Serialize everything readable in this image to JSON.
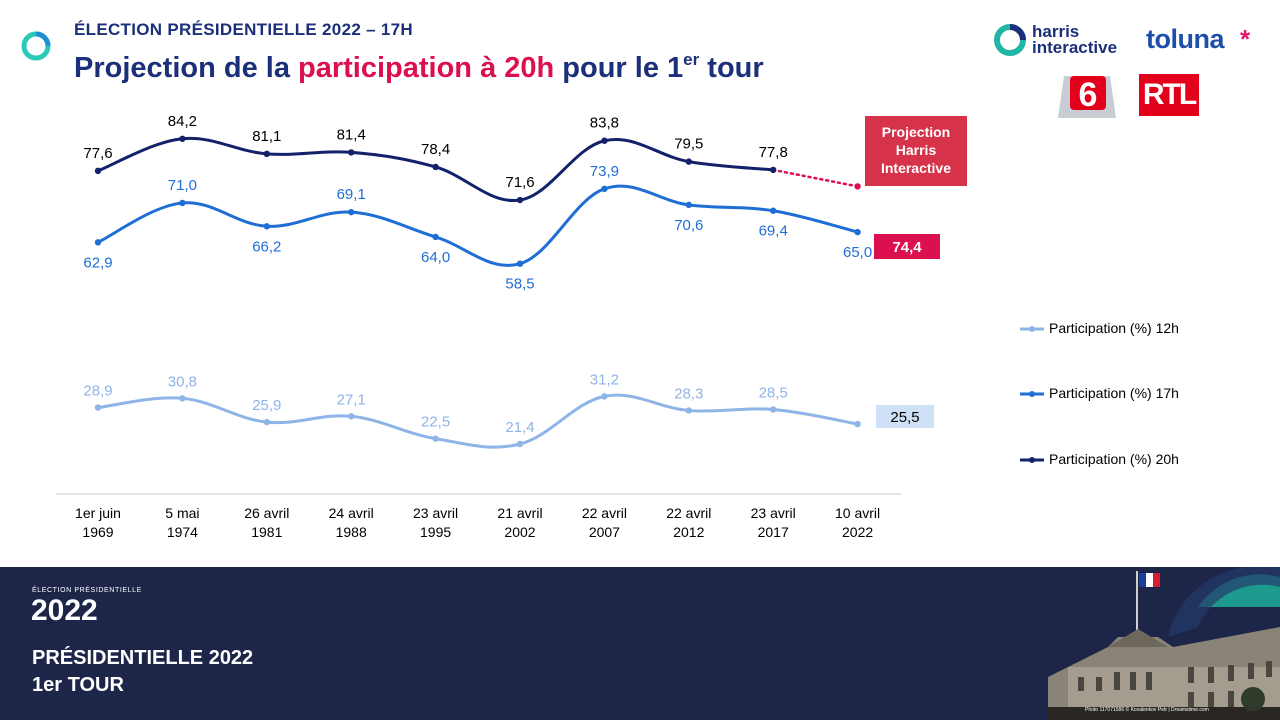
{
  "header": {
    "supertitle": "ÉLECTION PRÉSIDENTIELLE 2022 – 17H",
    "title_part1": "Projection de la ",
    "title_highlight": "participation à 20h",
    "title_part2": " pour le 1",
    "title_sup": "er",
    "title_part3": " tour",
    "highlight_color": "#dc0f4f"
  },
  "logos": {
    "harris_line1": "harris",
    "harris_line2": "interactive",
    "toluna": "toluna",
    "toluna_star": "*",
    "m6": "6",
    "rtl": "RTL"
  },
  "projection_box": {
    "line1": "Projection",
    "line2": "Harris",
    "line3": "Interactive"
  },
  "chart_data": {
    "type": "line",
    "categories": [
      [
        "1er juin",
        "1969"
      ],
      [
        "5 mai",
        "1974"
      ],
      [
        "26 avril",
        "1981"
      ],
      [
        "24 avril",
        "1988"
      ],
      [
        "23 avril",
        "1995"
      ],
      [
        "21 avril",
        "2002"
      ],
      [
        "22 avril",
        "2007"
      ],
      [
        "22 avril",
        "2012"
      ],
      [
        "23 avril",
        "2017"
      ],
      [
        "10 avril",
        "2022"
      ]
    ],
    "series": [
      {
        "name": "Participation (%) 12h",
        "color": "#8eb4e8",
        "values": [
          28.9,
          30.8,
          25.9,
          27.1,
          22.5,
          21.4,
          31.2,
          28.3,
          28.5,
          25.5
        ],
        "labels": [
          "28,9",
          "30,8",
          "25,9",
          "27,1",
          "22,5",
          "21,4",
          "31,2",
          "28,3",
          "28,5",
          "25,5"
        ]
      },
      {
        "name": "Participation (%) 17h",
        "color": "#1f6ed4",
        "values": [
          62.9,
          71.0,
          66.2,
          69.1,
          64.0,
          58.5,
          73.9,
          70.6,
          69.4,
          65.0
        ],
        "labels": [
          "62,9",
          "71,0",
          "66,2",
          "69,1",
          "64,0",
          "58,5",
          "73,9",
          "70,6",
          "69,4",
          "65,0"
        ]
      },
      {
        "name": "Participation (%) 20h",
        "color": "#13216a",
        "values": [
          77.6,
          84.2,
          81.1,
          81.4,
          78.4,
          71.6,
          83.8,
          79.5,
          77.8,
          74.4
        ],
        "labels": [
          "77,6",
          "84,2",
          "81,1",
          "81,4",
          "78,4",
          "71,6",
          "83,8",
          "79,5",
          "77,8",
          "74,4"
        ],
        "projected_last": true,
        "projection_color": "#dc0f4f"
      }
    ],
    "highlight_12h_color": "#cfe1f7",
    "xlabel": "",
    "ylabel": "",
    "legend_placement": "right",
    "grid": false
  },
  "footer": {
    "small": "ÉLECTION PRÉSIDENTIELLE",
    "year": "2022",
    "line1": "PRÉSIDENTIELLE 2022",
    "line2": "1er TOUR",
    "photo_credit": "Photo 117071586 © Kovalenkov Petr | Dreamstime.com"
  }
}
